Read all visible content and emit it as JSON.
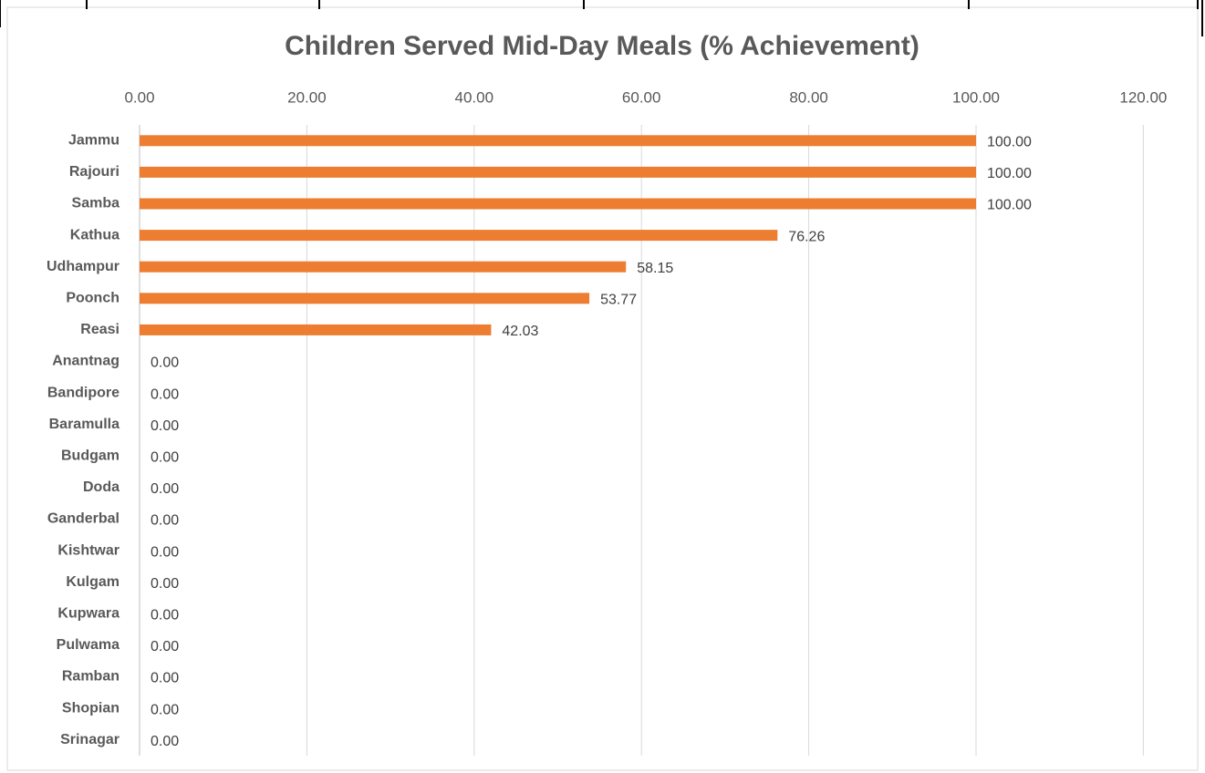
{
  "chart_data": {
    "type": "bar",
    "orientation": "horizontal",
    "title": "Children Served Mid-Day Meals (% Achievement)",
    "categories": [
      "Jammu",
      "Rajouri",
      "Samba",
      "Kathua",
      "Udhampur",
      "Poonch",
      "Reasi",
      "Anantnag",
      "Bandipore",
      "Baramulla",
      "Budgam",
      "Doda",
      "Ganderbal",
      "Kishtwar",
      "Kulgam",
      "Kupwara",
      "Pulwama",
      "Ramban",
      "Shopian",
      "Srinagar"
    ],
    "values": [
      100,
      100,
      100,
      76.26,
      58.15,
      53.77,
      42.03,
      0,
      0,
      0,
      0,
      0,
      0,
      0,
      0,
      0,
      0,
      0,
      0,
      0
    ],
    "value_labels": [
      "100.00",
      "100.00",
      "100.00",
      "76.26",
      "58.15",
      "53.77",
      "42.03",
      "0.00",
      "0.00",
      "0.00",
      "0.00",
      "0.00",
      "0.00",
      "0.00",
      "0.00",
      "0.00",
      "0.00",
      "0.00",
      "0.00",
      "0.00"
    ],
    "color": "#ed7d31",
    "xlim": [
      0,
      120
    ],
    "xticks": [
      {
        "value": 0,
        "label": "0.00"
      },
      {
        "value": 20,
        "label": "20.00"
      },
      {
        "value": 40,
        "label": "40.00"
      },
      {
        "value": 60,
        "label": "60.00"
      },
      {
        "value": 80,
        "label": "80.00"
      },
      {
        "value": 100,
        "label": "100.00"
      },
      {
        "value": 120,
        "label": "120.00"
      }
    ],
    "grid": true
  }
}
